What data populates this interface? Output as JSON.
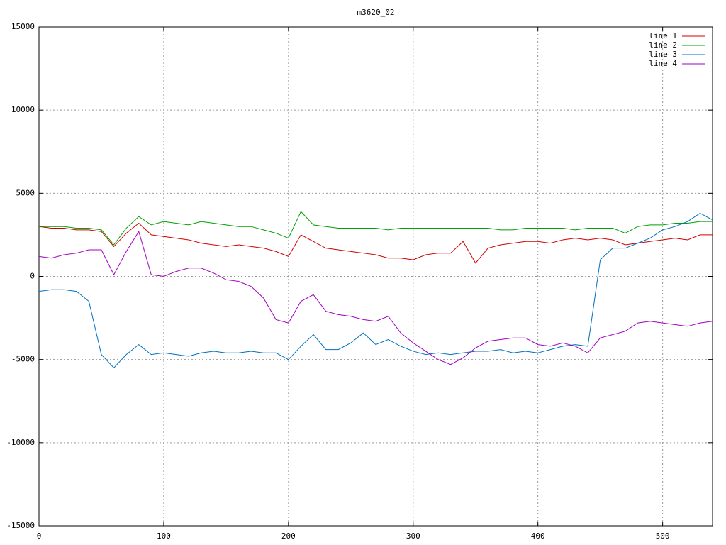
{
  "chart_data": {
    "type": "line",
    "title": "m3620_02",
    "x": [
      0,
      10,
      20,
      30,
      40,
      50,
      60,
      70,
      80,
      90,
      100,
      110,
      120,
      130,
      140,
      150,
      160,
      170,
      180,
      190,
      200,
      210,
      220,
      230,
      240,
      250,
      260,
      270,
      280,
      290,
      300,
      310,
      320,
      330,
      340,
      350,
      360,
      370,
      380,
      390,
      400,
      410,
      420,
      430,
      440,
      450,
      460,
      470,
      480,
      490,
      500,
      510,
      520,
      530,
      540
    ],
    "series": [
      {
        "name": "line 1",
        "color": "#d00000",
        "values": [
          3000,
          2900,
          2900,
          2800,
          2800,
          2700,
          1800,
          2600,
          3200,
          2500,
          2400,
          2300,
          2200,
          2000,
          1900,
          1800,
          1900,
          1800,
          1700,
          1500,
          1200,
          2500,
          2100,
          1700,
          1600,
          1500,
          1400,
          1300,
          1100,
          1100,
          1000,
          1300,
          1400,
          1400,
          2100,
          800,
          1700,
          1900,
          2000,
          2100,
          2100,
          2000,
          2200,
          2300,
          2200,
          2300,
          2200,
          1900,
          2000,
          2100,
          2200,
          2300,
          2200,
          2500,
          2500
        ]
      },
      {
        "name": "line 2",
        "color": "#00a000",
        "values": [
          3000,
          3000,
          3000,
          2900,
          2900,
          2800,
          1900,
          2900,
          3600,
          3100,
          3300,
          3200,
          3100,
          3300,
          3200,
          3100,
          3000,
          3000,
          2800,
          2600,
          2300,
          3900,
          3100,
          3000,
          2900,
          2900,
          2900,
          2900,
          2800,
          2900,
          2900,
          2900,
          2900,
          2900,
          2900,
          2900,
          2900,
          2800,
          2800,
          2900,
          2900,
          2900,
          2900,
          2800,
          2900,
          2900,
          2900,
          2600,
          3000,
          3100,
          3100,
          3200,
          3200,
          3300,
          3300
        ]
      },
      {
        "name": "line 3",
        "color": "#0070c0",
        "values": [
          -900,
          -800,
          -800,
          -900,
          -1500,
          -4700,
          -5500,
          -4700,
          -4100,
          -4700,
          -4600,
          -4700,
          -4800,
          -4600,
          -4500,
          -4600,
          -4600,
          -4500,
          -4600,
          -4600,
          -5000,
          -4200,
          -3500,
          -4400,
          -4400,
          -4000,
          -3400,
          -4100,
          -3800,
          -4200,
          -4500,
          -4700,
          -4600,
          -4700,
          -4600,
          -4500,
          -4500,
          -4400,
          -4600,
          -4500,
          -4600,
          -4400,
          -4200,
          -4100,
          -4200,
          1000,
          1700,
          1700,
          2000,
          2300,
          2800,
          3000,
          3300,
          3800,
          3400
        ]
      },
      {
        "name": "line 4",
        "color": "#a000c0",
        "values": [
          1200,
          1100,
          1300,
          1400,
          1600,
          1600,
          100,
          1500,
          2700,
          100,
          0,
          300,
          500,
          500,
          200,
          -200,
          -300,
          -600,
          -1300,
          -2600,
          -2800,
          -1500,
          -1100,
          -2100,
          -2300,
          -2400,
          -2600,
          -2700,
          -2400,
          -3400,
          -4000,
          -4500,
          -5000,
          -5300,
          -4900,
          -4300,
          -3900,
          -3800,
          -3700,
          -3700,
          -4100,
          -4200,
          -4000,
          -4200,
          -4600,
          -3700,
          -3500,
          -3300,
          -2800,
          -2700,
          -2800,
          -2900,
          -3000,
          -2800,
          -2700
        ]
      }
    ],
    "xlim": [
      0,
      540
    ],
    "xticks": [
      0,
      100,
      200,
      300,
      400,
      500
    ],
    "ylim": [
      -15000,
      15000
    ],
    "yticks": [
      -15000,
      -10000,
      -5000,
      0,
      5000,
      10000,
      15000
    ],
    "grid": true,
    "legend": "top-right"
  }
}
